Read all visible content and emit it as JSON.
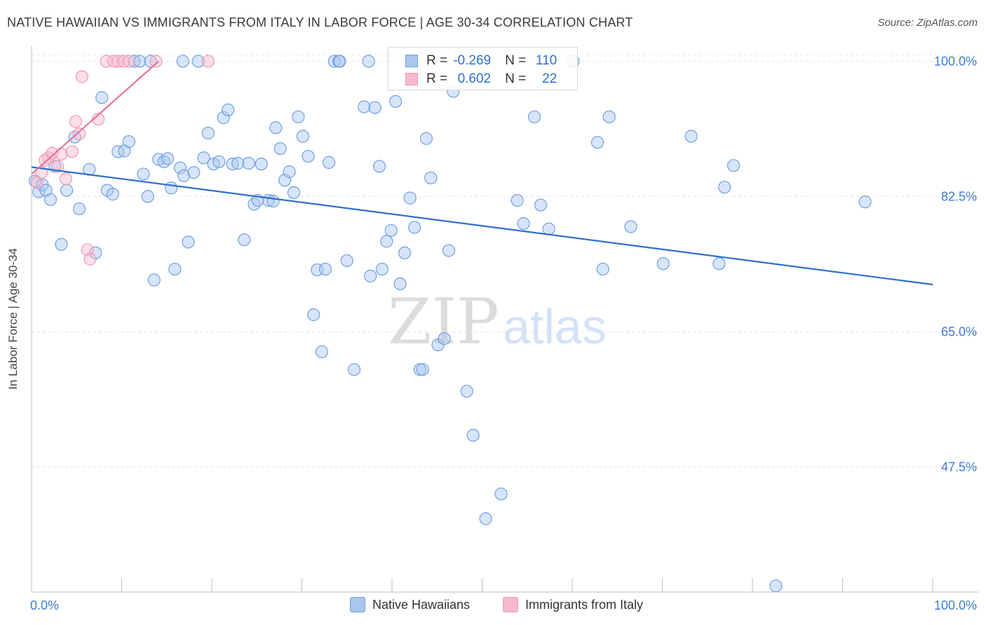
{
  "header": {
    "title": "NATIVE HAWAIIAN VS IMMIGRANTS FROM ITALY IN LABOR FORCE | AGE 30-34 CORRELATION CHART",
    "source": "Source: ZipAtlas.com"
  },
  "watermark": {
    "zip": "ZIP",
    "atlas": "atlas"
  },
  "legend": {
    "series1": {
      "r_label": "R =",
      "r_value": "-0.269",
      "n_label": "N =",
      "n_value": "110"
    },
    "series2": {
      "r_label": "R =",
      "r_value": "0.602",
      "n_label": "N =",
      "n_value": "22"
    }
  },
  "bottom_legend": {
    "series1": "Native Hawaiians",
    "series2": "Immigrants from Italy"
  },
  "colors": {
    "blue_fill": "#a9c6f0",
    "blue_stroke": "#6f9fe0",
    "blue_line": "#2f6fcd",
    "pink_fill": "#f7b9cc",
    "pink_stroke": "#ef98b4",
    "pink_line": "#e8719a",
    "axis_text": "#3d7bd6",
    "grid": "#e3e3e3"
  },
  "chart_data": {
    "type": "scatter",
    "title": "NATIVE HAWAIIAN VS IMMIGRANTS FROM ITALY IN LABOR FORCE | AGE 30-34 CORRELATION CHART",
    "xlabel": "",
    "ylabel": "In Labor Force | Age 30-34",
    "xlim": [
      0,
      100
    ],
    "ylim": [
      31.3,
      101.4
    ],
    "x_tick_labels": [
      "0.0%",
      "100.0%"
    ],
    "y_ticks": [
      100.0,
      82.5,
      65.0,
      47.5
    ],
    "y_tick_labels": [
      "100.0%",
      "82.5%",
      "65.0%",
      "47.5%"
    ],
    "grid": true,
    "series": [
      {
        "name": "Native Hawaiians",
        "r": -0.269,
        "n": 110,
        "trend": {
          "x": [
            0,
            100
          ],
          "y": [
            86.3,
            71.1
          ]
        },
        "points": [
          [
            0.4,
            84.5
          ],
          [
            0.8,
            83.1
          ],
          [
            1.2,
            84.0
          ],
          [
            1.6,
            83.3
          ],
          [
            2.1,
            82.1
          ],
          [
            2.6,
            86.4
          ],
          [
            3.3,
            76.3
          ],
          [
            3.9,
            83.3
          ],
          [
            4.8,
            90.2
          ],
          [
            5.3,
            80.9
          ],
          [
            6.4,
            86.0
          ],
          [
            7.1,
            75.2
          ],
          [
            7.8,
            95.3
          ],
          [
            8.4,
            83.3
          ],
          [
            9.0,
            82.8
          ],
          [
            9.6,
            88.3
          ],
          [
            10.3,
            88.4
          ],
          [
            10.8,
            89.6
          ],
          [
            11.4,
            100.0
          ],
          [
            12.0,
            100.0
          ],
          [
            12.4,
            85.4
          ],
          [
            12.9,
            82.5
          ],
          [
            13.6,
            71.7
          ],
          [
            14.1,
            87.3
          ],
          [
            14.7,
            87.0
          ],
          [
            15.1,
            87.4
          ],
          [
            15.5,
            83.6
          ],
          [
            15.9,
            73.1
          ],
          [
            16.5,
            86.2
          ],
          [
            16.9,
            85.2
          ],
          [
            17.4,
            76.6
          ],
          [
            18.0,
            85.6
          ],
          [
            18.5,
            100.0
          ],
          [
            19.1,
            87.5
          ],
          [
            19.6,
            90.7
          ],
          [
            20.2,
            86.7
          ],
          [
            20.8,
            87.0
          ],
          [
            21.3,
            92.7
          ],
          [
            21.8,
            93.7
          ],
          [
            22.3,
            86.7
          ],
          [
            22.9,
            86.8
          ],
          [
            23.6,
            76.9
          ],
          [
            24.1,
            86.8
          ],
          [
            24.7,
            81.5
          ],
          [
            25.1,
            82.0
          ],
          [
            25.5,
            86.7
          ],
          [
            26.3,
            82.0
          ],
          [
            26.8,
            81.9
          ],
          [
            27.1,
            91.4
          ],
          [
            27.6,
            88.7
          ],
          [
            28.1,
            84.6
          ],
          [
            28.6,
            85.7
          ],
          [
            29.1,
            83.0
          ],
          [
            29.6,
            92.8
          ],
          [
            30.1,
            90.3
          ],
          [
            30.7,
            87.7
          ],
          [
            31.3,
            67.2
          ],
          [
            31.7,
            73.0
          ],
          [
            32.2,
            62.4
          ],
          [
            32.6,
            73.1
          ],
          [
            33.0,
            86.9
          ],
          [
            33.6,
            100.0
          ],
          [
            34.1,
            100.0
          ],
          [
            35.0,
            74.2
          ],
          [
            35.8,
            60.1
          ],
          [
            36.9,
            94.1
          ],
          [
            37.4,
            100.0
          ],
          [
            38.1,
            94.0
          ],
          [
            38.6,
            86.4
          ],
          [
            37.6,
            72.2
          ],
          [
            38.9,
            73.1
          ],
          [
            39.4,
            76.7
          ],
          [
            39.9,
            78.1
          ],
          [
            40.4,
            94.8
          ],
          [
            40.9,
            71.2
          ],
          [
            41.4,
            75.2
          ],
          [
            42.0,
            82.3
          ],
          [
            42.5,
            78.5
          ],
          [
            43.1,
            60.1
          ],
          [
            43.4,
            60.1
          ],
          [
            43.8,
            90.0
          ],
          [
            44.3,
            84.9
          ],
          [
            45.1,
            63.3
          ],
          [
            45.8,
            64.1
          ],
          [
            46.3,
            75.5
          ],
          [
            46.8,
            96.1
          ],
          [
            48.3,
            57.3
          ],
          [
            49.0,
            51.6
          ],
          [
            50.4,
            40.8
          ],
          [
            52.1,
            44.0
          ],
          [
            53.9,
            82.0
          ],
          [
            54.6,
            79.0
          ],
          [
            55.8,
            92.8
          ],
          [
            56.5,
            81.4
          ],
          [
            57.4,
            78.3
          ],
          [
            60.1,
            100.0
          ],
          [
            62.8,
            89.5
          ],
          [
            63.4,
            73.1
          ],
          [
            64.1,
            92.8
          ],
          [
            66.5,
            78.6
          ],
          [
            70.1,
            73.8
          ],
          [
            73.2,
            90.3
          ],
          [
            76.3,
            73.8
          ],
          [
            76.9,
            83.7
          ],
          [
            77.9,
            86.5
          ],
          [
            92.5,
            81.8
          ],
          [
            82.6,
            32.1
          ],
          [
            13.2,
            100.0
          ],
          [
            16.8,
            100.0
          ],
          [
            34.2,
            100.0
          ]
        ]
      },
      {
        "name": "Immigrants from Italy",
        "r": 0.602,
        "n": 22,
        "trend": {
          "x": [
            0,
            14.1
          ],
          "y": [
            85.4,
            100.0
          ]
        },
        "points": [
          [
            0.6,
            84.3
          ],
          [
            1.1,
            85.6
          ],
          [
            1.5,
            87.2
          ],
          [
            1.9,
            87.5
          ],
          [
            2.3,
            88.1
          ],
          [
            2.9,
            86.4
          ],
          [
            3.3,
            88.0
          ],
          [
            3.8,
            84.8
          ],
          [
            4.5,
            88.3
          ],
          [
            4.9,
            92.2
          ],
          [
            5.3,
            90.6
          ],
          [
            5.6,
            98.0
          ],
          [
            6.2,
            75.6
          ],
          [
            6.5,
            74.4
          ],
          [
            7.4,
            92.5
          ],
          [
            8.3,
            100.0
          ],
          [
            9.1,
            100.0
          ],
          [
            9.6,
            100.0
          ],
          [
            10.2,
            100.0
          ],
          [
            10.8,
            100.0
          ],
          [
            13.8,
            100.0
          ],
          [
            19.6,
            100.0
          ]
        ]
      }
    ]
  }
}
